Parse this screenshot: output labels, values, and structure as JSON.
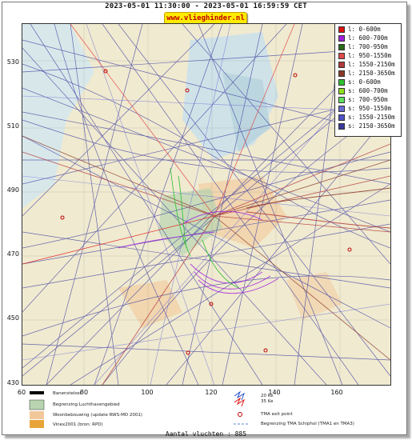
{
  "header": {
    "title": "2023-05-01 11:30:00 - 2023-05-01 16:59:59 CET",
    "site": "www.vlieghinder.nl"
  },
  "axes": {
    "y_ticks": [
      "530",
      "510",
      "490",
      "470",
      "450",
      "430"
    ],
    "x_ticks": [
      "60",
      "80",
      "100",
      "120",
      "140",
      "160"
    ]
  },
  "legend": {
    "items": [
      {
        "label": "l: 0-600m",
        "color": "#e01010"
      },
      {
        "label": "l: 600-700m",
        "color": "#a020e0"
      },
      {
        "label": "l: 700-950m",
        "color": "#2a6a1a"
      },
      {
        "label": "l: 950-1550m",
        "color": "#e04a4a"
      },
      {
        "label": "l: 1550-2150m",
        "color": "#b23a3a"
      },
      {
        "label": "l: 2150-3650m",
        "color": "#8b3a2a"
      },
      {
        "label": "s: 0-600m",
        "color": "#30c030"
      },
      {
        "label": "s: 600-700m",
        "color": "#90e020"
      },
      {
        "label": "s: 700-950m",
        "color": "#60e060"
      },
      {
        "label": "s: 950-1550m",
        "color": "#6a6ad8"
      },
      {
        "label": "s: 1550-2150m",
        "color": "#5050c8"
      },
      {
        "label": "s: 2150-3650m",
        "color": "#3a3a9a"
      }
    ]
  },
  "key": {
    "runway": "Banenstelsel",
    "airport_boundary": "Begrenzing Luchthavengebied",
    "housing": "Woonbebouwing (update RWS-MD 2001)",
    "vinex": "Vinex2001 (bron: RPD)",
    "km20": "20 Ke",
    "km35": "35 Ke",
    "tma_exit": "TMA exit point",
    "tma_boundary": "Begrenzing TMA Schiphol  (TMA1 en TMA3)"
  },
  "footer": {
    "count": "Aantal vluchten : 885"
  }
}
